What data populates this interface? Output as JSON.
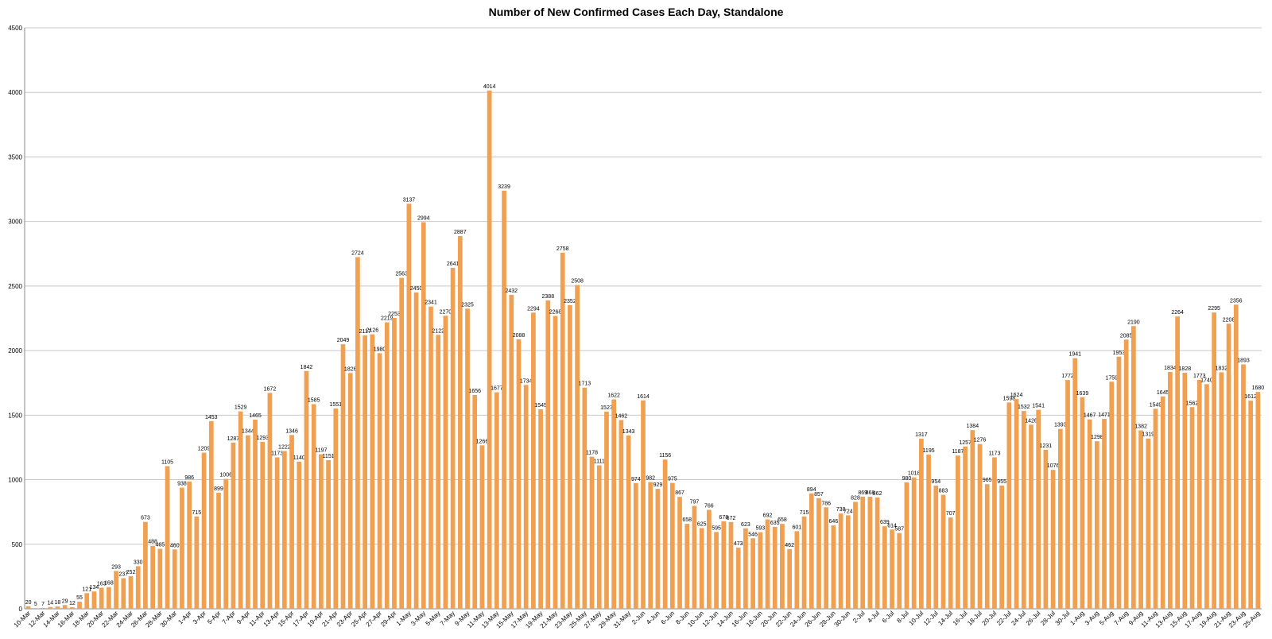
{
  "chart_data": {
    "type": "bar",
    "title": "Number of New Confirmed Cases Each Day, Standalone",
    "xlabel": "",
    "ylabel": "",
    "ylim": [
      0,
      4500
    ],
    "yticks": [
      0,
      500,
      1000,
      1500,
      2000,
      2500,
      3000,
      3500,
      4000,
      4500
    ],
    "grid": true,
    "bar_color": "#F0A050",
    "categories": [
      "10-Mar",
      "11-Mar",
      "12-Mar",
      "13-Mar",
      "14-Mar",
      "15-Mar",
      "16-Mar",
      "17-Mar",
      "18-Mar",
      "19-Mar",
      "20-Mar",
      "21-Mar",
      "22-Mar",
      "23-Mar",
      "24-Mar",
      "25-Mar",
      "26-Mar",
      "27-Mar",
      "28-Mar",
      "29-Mar",
      "30-Mar",
      "31-Mar",
      "1-Apr",
      "2-Apr",
      "3-Apr",
      "4-Apr",
      "5-Apr",
      "6-Apr",
      "7-Apr",
      "8-Apr",
      "9-Apr",
      "10-Apr",
      "11-Apr",
      "12-Apr",
      "13-Apr",
      "14-Apr",
      "15-Apr",
      "16-Apr",
      "17-Apr",
      "18-Apr",
      "19-Apr",
      "20-Apr",
      "21-Apr",
      "22-Apr",
      "23-Apr",
      "24-Apr",
      "25-Apr",
      "26-Apr",
      "27-Apr",
      "28-Apr",
      "29-Apr",
      "30-Apr",
      "1-May",
      "2-May",
      "3-May",
      "4-May",
      "5-May",
      "6-May",
      "7-May",
      "8-May",
      "9-May",
      "10-May",
      "11-May",
      "12-May",
      "13-May",
      "14-May",
      "15-May",
      "16-May",
      "17-May",
      "18-May",
      "19-May",
      "20-May",
      "21-May",
      "22-May",
      "23-May",
      "24-May",
      "25-May",
      "26-May",
      "27-May",
      "28-May",
      "29-May",
      "30-May",
      "31-May",
      "1-Jun",
      "2-Jun",
      "3-Jun",
      "4-Jun",
      "5-Jun",
      "6-Jun",
      "7-Jun",
      "8-Jun",
      "9-Jun",
      "10-Jun",
      "11-Jun",
      "12-Jun",
      "13-Jun",
      "14-Jun",
      "15-Jun",
      "16-Jun",
      "17-Jun",
      "18-Jun",
      "19-Jun",
      "20-Jun",
      "21-Jun",
      "22-Jun",
      "23-Jun",
      "24-Jun",
      "25-Jun",
      "26-Jun",
      "27-Jun",
      "28-Jun",
      "29-Jun",
      "30-Jun",
      "1-Jul",
      "2-Jul",
      "3-Jul",
      "4-Jul",
      "5-Jul",
      "6-Jul",
      "7-Jul",
      "8-Jul",
      "9-Jul",
      "10-Jul",
      "11-Jul",
      "12-Jul",
      "13-Jul",
      "14-Jul",
      "15-Jul",
      "16-Jul",
      "17-Jul",
      "18-Jul",
      "19-Jul",
      "20-Jul",
      "21-Jul",
      "22-Jul",
      "23-Jul",
      "24-Jul",
      "25-Jul",
      "26-Jul",
      "27-Jul",
      "28-Jul",
      "29-Jul",
      "30-Jul",
      "31-Jul",
      "1-Aug",
      "2-Aug",
      "3-Aug",
      "4-Aug",
      "5-Aug",
      "6-Aug",
      "7-Aug",
      "8-Aug",
      "9-Aug",
      "10-Aug",
      "11-Aug",
      "12-Aug",
      "13-Aug",
      "14-Aug",
      "15-Aug",
      "16-Aug",
      "17-Aug",
      "18-Aug",
      "19-Aug",
      "20-Aug",
      "21-Aug",
      "22-Aug",
      "23-Aug",
      "24-Aug",
      "25-Aug"
    ],
    "x_tick_labels_shown": [
      "10-Mar",
      "12-Mar",
      "14-Mar",
      "16-Mar",
      "18-Mar",
      "20-Mar",
      "22-Mar",
      "24-Mar",
      "26-Mar",
      "28-Mar",
      "30-Mar",
      "1-Apr",
      "3-Apr",
      "5-Apr",
      "7-Apr",
      "9-Apr",
      "11-Apr",
      "13-Apr",
      "15-Apr",
      "17-Apr",
      "19-Apr",
      "21-Apr",
      "23-Apr",
      "25-Apr",
      "27-Apr",
      "29-Apr",
      "1-May",
      "3-May",
      "5-May",
      "7-May",
      "9-May",
      "11-May",
      "13-May",
      "15-May",
      "17-May",
      "19-May",
      "21-May",
      "23-May",
      "25-May",
      "27-May",
      "29-May",
      "31-May",
      "2-Jun",
      "4-Jun",
      "6-Jun",
      "8-Jun",
      "10-Jun",
      "12-Jun",
      "14-Jun",
      "16-Jun",
      "18-Jun",
      "20-Jun",
      "22-Jun",
      "24-Jun",
      "26-Jun",
      "28-Jun",
      "30-Jun",
      "2-Jul",
      "4-Jul",
      "6-Jul",
      "8-Jul",
      "10-Jul",
      "12-Jul",
      "14-Jul",
      "16-Jul",
      "18-Jul",
      "20-Jul",
      "22-Jul",
      "24-Jul",
      "26-Jul",
      "28-Jul",
      "30-Jul",
      "1-Aug",
      "3-Aug",
      "5-Aug",
      "7-Aug",
      "9-Aug",
      "11-Aug",
      "13-Aug",
      "15-Aug",
      "17-Aug",
      "19-Aug",
      "21-Aug",
      "23-Aug",
      "25-Aug"
    ],
    "values": [
      20,
      5,
      7,
      14,
      18,
      29,
      12,
      55,
      121,
      134,
      163,
      168,
      293,
      237,
      252,
      330,
      673,
      488,
      465,
      1105,
      460,
      938,
      986,
      715,
      1209,
      1453,
      899,
      1006,
      1287,
      1529,
      1344,
      1465,
      1293,
      1672,
      1173,
      1222,
      1346,
      1140,
      1842,
      1585,
      1197,
      1151,
      1551,
      2049,
      1826,
      2724,
      2117,
      2126,
      1980,
      2219,
      2253,
      2563,
      3137,
      2450,
      2994,
      2341,
      2122,
      2270,
      2641,
      2887,
      2325,
      1656,
      1266,
      4014,
      1677,
      3239,
      2432,
      2088,
      1734,
      2294,
      1545,
      2388,
      2268,
      2758,
      2352,
      2508,
      1713,
      1178,
      1111,
      1527,
      1622,
      1462,
      1343,
      974,
      1614,
      982,
      929,
      1156,
      975,
      867,
      658,
      797,
      625,
      766,
      595,
      678,
      672,
      473,
      623,
      546,
      593,
      692,
      635,
      658,
      462,
      601,
      715,
      894,
      857,
      786,
      646,
      738,
      724,
      828,
      869,
      868,
      862,
      639,
      614,
      587,
      980,
      1018,
      1317,
      1195,
      954,
      883,
      707,
      1187,
      1257,
      1384,
      1276,
      965,
      1173,
      955,
      1598,
      1624,
      1532,
      1426,
      1541,
      1231,
      1076,
      1393,
      1772,
      1941,
      1639,
      1467,
      1298,
      1471,
      1759,
      1953,
      2085,
      2190,
      1382,
      1319,
      1549,
      1645,
      1834,
      2264,
      1828,
      1562,
      1773,
      1740,
      2295,
      1832,
      2208,
      2356,
      1893,
      1612,
      1680
    ]
  }
}
